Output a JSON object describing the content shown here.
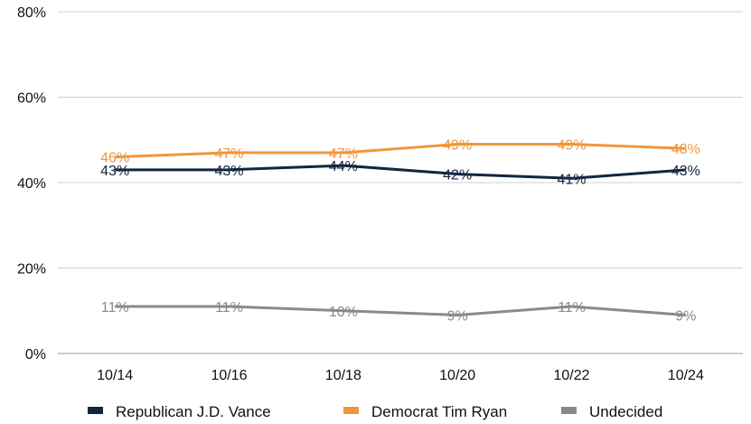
{
  "chart_data": {
    "type": "line",
    "title": "",
    "xlabel": "",
    "ylabel": "",
    "categories": [
      "10/14",
      "10/16",
      "10/18",
      "10/20",
      "10/22",
      "10/24"
    ],
    "ylim": [
      0,
      80
    ],
    "yticks": [
      0,
      20,
      40,
      60,
      80
    ],
    "ytick_labels": [
      "0%",
      "20%",
      "40%",
      "60%",
      "80%"
    ],
    "grid": true,
    "legend_position": "bottom",
    "series": [
      {
        "name": "Republican J.D. Vance",
        "color": "#13263f",
        "values": [
          43,
          43,
          44,
          42,
          41,
          43
        ],
        "labels": [
          "43%",
          "43%",
          "44%",
          "42%",
          "41%",
          "43%"
        ]
      },
      {
        "name": "Democrat Tim Ryan",
        "color": "#f0963c",
        "values": [
          46,
          47,
          47,
          49,
          49,
          48
        ],
        "labels": [
          "46%",
          "47%",
          "47%",
          "49%",
          "49%",
          "48%"
        ]
      },
      {
        "name": "Undecided",
        "color": "#8a8a8a",
        "values": [
          11,
          11,
          10,
          9,
          11,
          9
        ],
        "labels": [
          "11%",
          "11%",
          "10%",
          "9%",
          "11%",
          "9%"
        ]
      }
    ]
  }
}
